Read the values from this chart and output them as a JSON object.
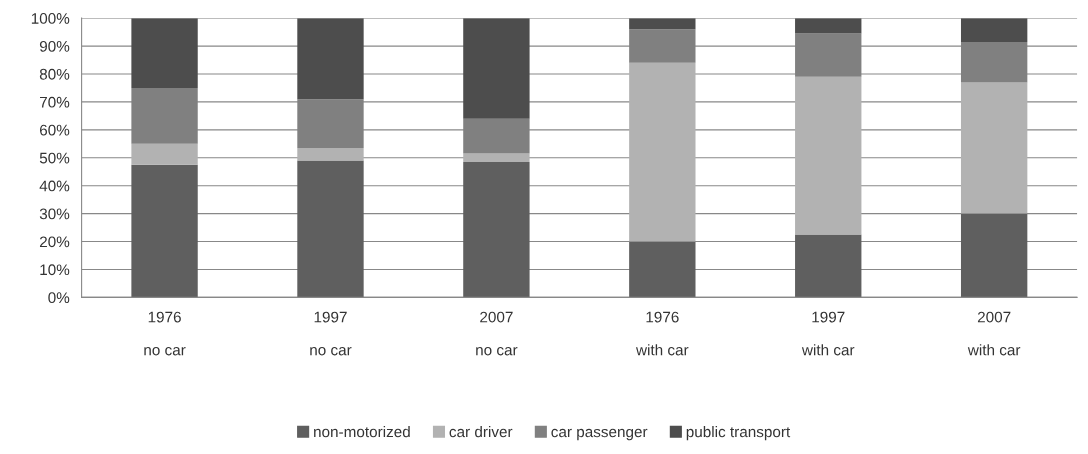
{
  "chart_data": {
    "type": "bar",
    "stacked": true,
    "categories": [
      "1976\n\nno car",
      "1997\n\nno car",
      "2007\n\nno car",
      "1976\n\nwith car",
      "1997\n\nwith car",
      "2007\n\nwith car"
    ],
    "series": [
      {
        "name": "non-motorized",
        "color": "#5f5f5f",
        "values": [
          47.5,
          49,
          48.5,
          20,
          22.5,
          30
        ]
      },
      {
        "name": "car driver",
        "color": "#b2b2b2",
        "values": [
          7.5,
          4.5,
          3,
          64,
          56.5,
          47
        ]
      },
      {
        "name": "car passenger",
        "color": "#808080",
        "values": [
          20,
          17.5,
          12.5,
          12,
          15.5,
          14.5
        ]
      },
      {
        "name": "public transport",
        "color": "#4d4d4d",
        "values": [
          25,
          29,
          36,
          4,
          5.5,
          8.5
        ]
      }
    ],
    "ylim": [
      0,
      100
    ],
    "yticks": [
      {
        "value": 0,
        "label": "0%"
      },
      {
        "value": 10,
        "label": "10%"
      },
      {
        "value": 20,
        "label": "20%"
      },
      {
        "value": 30,
        "label": "30%"
      },
      {
        "value": 40,
        "label": "40%"
      },
      {
        "value": 50,
        "label": "50%"
      },
      {
        "value": 60,
        "label": "60%"
      },
      {
        "value": 70,
        "label": "70%"
      },
      {
        "value": 80,
        "label": "80%"
      },
      {
        "value": 90,
        "label": "90%"
      },
      {
        "value": 100,
        "label": "100%"
      }
    ],
    "grid": "y",
    "legend": "bottom"
  }
}
